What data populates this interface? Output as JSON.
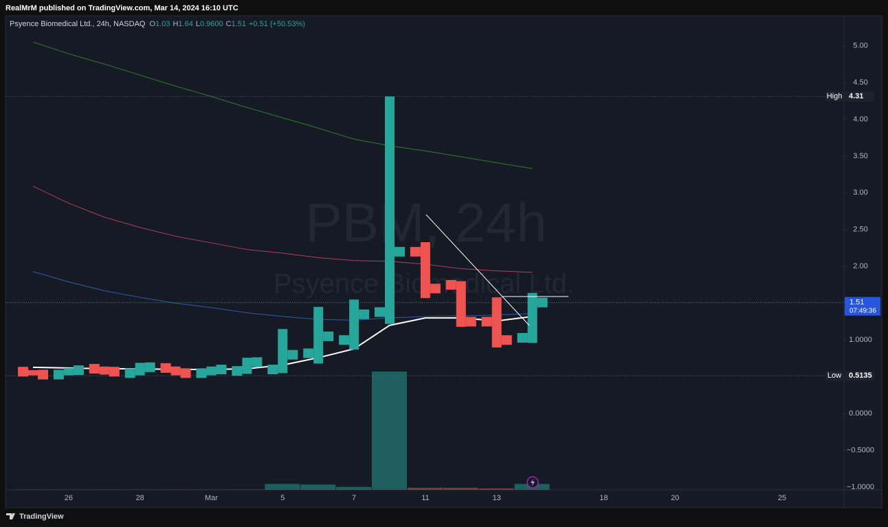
{
  "header": {
    "title": "RealMrM published on TradingView.com, Mar 14, 2024 16:10 UTC"
  },
  "legend": {
    "symbol": "Psyence Biomedical Ltd., 24h, NASDAQ",
    "items": [
      {
        "label": "O",
        "value": "1.03"
      },
      {
        "label": "H",
        "value": "1.64"
      },
      {
        "label": "L",
        "value": "0.9600"
      },
      {
        "label": "C",
        "value": "1.51"
      }
    ],
    "change": "+0.51 (+50.53%)"
  },
  "watermark": {
    "ticker": "PBM, 24h",
    "name": "Psyence Biomedical Ltd."
  },
  "footer": {
    "brand": "TradingView"
  },
  "chart_data": {
    "type": "ohlc",
    "categories": [
      null,
      "26",
      null,
      "28",
      null,
      "Mar",
      null,
      "5",
      null,
      "7",
      null,
      "11",
      null,
      "13",
      null,
      null,
      "18",
      null,
      "20",
      null,
      null,
      "25"
    ],
    "open": [
      0.57,
      0.53,
      0.61,
      0.55,
      0.62,
      0.55,
      0.58,
      0.6,
      0.82,
      1.0,
      1.38,
      2.2,
      1.75,
      1.25,
      1.03,
      null,
      null,
      null,
      null,
      null,
      null,
      null
    ],
    "high": [
      0.59,
      0.62,
      0.64,
      0.69,
      0.64,
      0.64,
      0.76,
      1.15,
      1.45,
      1.55,
      4.31,
      2.33,
      1.8,
      1.58,
      1.64,
      null,
      null,
      null,
      null,
      null,
      null,
      null
    ],
    "low": [
      0.52,
      0.52,
      0.53,
      0.52,
      0.52,
      0.52,
      0.54,
      0.55,
      0.68,
      0.87,
      1.22,
      1.57,
      1.18,
      0.9,
      0.96,
      null,
      null,
      null,
      null,
      null,
      null,
      null
    ],
    "close": [
      0.53,
      0.59,
      0.57,
      0.63,
      0.55,
      0.6,
      0.7,
      0.8,
      1.05,
      1.35,
      2.2,
      1.7,
      1.25,
      1.0,
      1.51,
      null,
      null,
      null,
      null,
      null,
      null,
      null
    ],
    "up_color": "#26a69a",
    "down_color": "#ef5350",
    "volume": {
      "values": [
        0.2,
        0.2,
        0.2,
        0.2,
        0.2,
        0.2,
        0.3,
        5,
        4.5,
        2.5,
        100,
        1.8,
        1.8,
        1.2,
        5,
        null,
        null,
        null,
        null,
        null,
        null,
        null
      ]
    },
    "series": [
      {
        "color": "#2e7d32",
        "values": [
          5.05,
          4.89,
          4.75,
          4.6,
          4.45,
          4.31,
          4.16,
          4.02,
          3.88,
          3.73,
          3.64,
          3.57,
          3.49,
          3.41,
          3.33,
          null,
          null,
          null,
          null,
          null,
          null,
          null
        ]
      },
      {
        "color": "#b0405e",
        "values": [
          3.09,
          2.86,
          2.67,
          2.53,
          2.41,
          2.32,
          2.23,
          2.18,
          2.12,
          2.08,
          2.07,
          2.03,
          1.97,
          1.94,
          1.92,
          null,
          null,
          null,
          null,
          null,
          null,
          null
        ]
      },
      {
        "color": "#2d5ea8",
        "values": [
          1.93,
          1.79,
          1.67,
          1.58,
          1.5,
          1.44,
          1.37,
          1.32,
          1.28,
          1.27,
          1.3,
          1.32,
          1.33,
          1.34,
          1.36,
          null,
          null,
          null,
          null,
          null,
          null,
          null
        ]
      },
      {
        "color": "#ffffff",
        "values": [
          0.63,
          0.62,
          0.61,
          0.61,
          0.6,
          0.6,
          0.61,
          0.66,
          0.76,
          0.88,
          1.2,
          1.3,
          1.3,
          1.26,
          1.32,
          null,
          null,
          null,
          null,
          null,
          null,
          null
        ]
      }
    ],
    "ylim": [
      -1.036,
      5.406
    ],
    "yticks": [
      {
        "value": 5,
        "label": "5.00"
      },
      {
        "value": 4.5,
        "label": "4.50"
      },
      {
        "value": 4,
        "label": "4.00"
      },
      {
        "value": 3.5,
        "label": "3.50"
      },
      {
        "value": 3,
        "label": "3.00"
      },
      {
        "value": 2.5,
        "label": "2.50"
      },
      {
        "value": 2,
        "label": "2.00"
      },
      {
        "value": 1,
        "label": "1.0000"
      },
      {
        "value": 0,
        "label": "0.0000"
      },
      {
        "value": -0.5,
        "label": "−0.5000"
      },
      {
        "value": -1,
        "label": "−1.0000"
      }
    ],
    "high_marker": {
      "label": "High",
      "value": 4.31
    },
    "low_marker": {
      "label": "Low",
      "value": 0.5135
    },
    "last_price": {
      "value": 1.51,
      "countdown": "07:49:36"
    }
  }
}
